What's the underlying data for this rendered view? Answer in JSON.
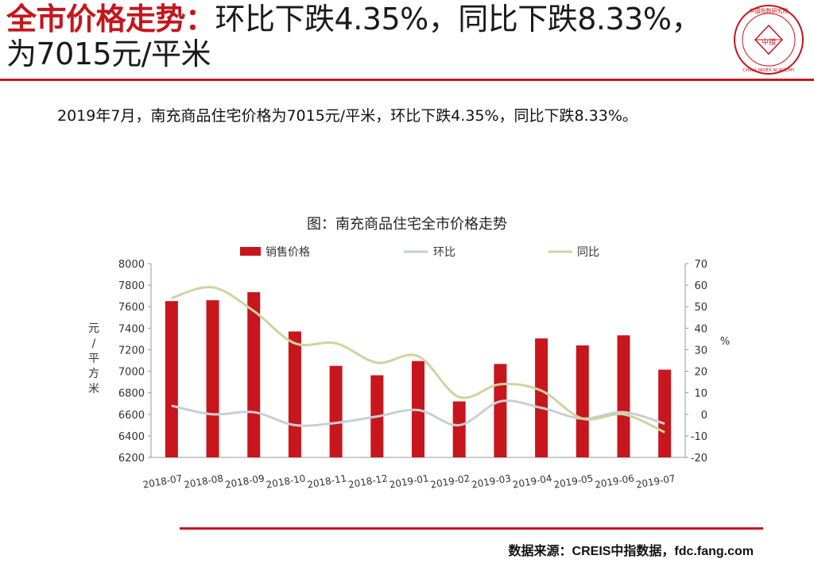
{
  "header": {
    "title_prefix": "全市价格走势：",
    "title_main": "环比下跌4.35%，同比下跌8.33%，为7015元/平米",
    "logo_text_top": "中国指数研究院",
    "logo_text_bottom": "CHINA INDEX ACADEMY",
    "logo_center": "中指"
  },
  "summary": "2019年7月，南充商品住宅价格为7015元/平米，环比下跌4.35%，同比下跌8.33%。",
  "source": "数据来源：CREIS中指数据，fdc.fang.com",
  "colors": {
    "accent": "#c4161c",
    "bar": "#c8161d",
    "mom": "#c9cfd4",
    "yoy": "#cfd3a0"
  },
  "chart_data": {
    "type": "bar",
    "title": "图：南充商品住宅全市价格走势",
    "categories": [
      "2018-07",
      "2018-08",
      "2018-09",
      "2018-10",
      "2018-11",
      "2018-12",
      "2019-01",
      "2019-02",
      "2019-03",
      "2019-04",
      "2019-05",
      "2019-06",
      "2019-07"
    ],
    "series": [
      {
        "name": "销售价格",
        "type": "bar",
        "axis": "left",
        "values": [
          7652,
          7660,
          7735,
          7370,
          7050,
          6963,
          7095,
          6720,
          7068,
          7305,
          7240,
          7334,
          7015
        ]
      },
      {
        "name": "环比",
        "type": "line",
        "axis": "right",
        "values": [
          4,
          0,
          1,
          -5,
          -4,
          -1,
          2,
          -5,
          6,
          3,
          -2,
          1,
          -4.35
        ]
      },
      {
        "name": "同比",
        "type": "line",
        "axis": "right",
        "values": [
          54,
          59,
          48,
          33,
          33,
          24,
          27,
          8,
          14,
          11,
          -2,
          0,
          -8.33
        ]
      }
    ],
    "ylabel": "元/平方米",
    "ylim": [
      6200,
      8000
    ],
    "yticks": [
      6200,
      6400,
      6600,
      6800,
      7000,
      7200,
      7400,
      7600,
      7800,
      8000
    ],
    "y2label": "%",
    "y2lim": [
      -20,
      70
    ],
    "y2ticks": [
      -20,
      -10,
      0,
      10,
      20,
      30,
      40,
      50,
      60,
      70
    ],
    "grid": false,
    "legend_position": "top"
  }
}
